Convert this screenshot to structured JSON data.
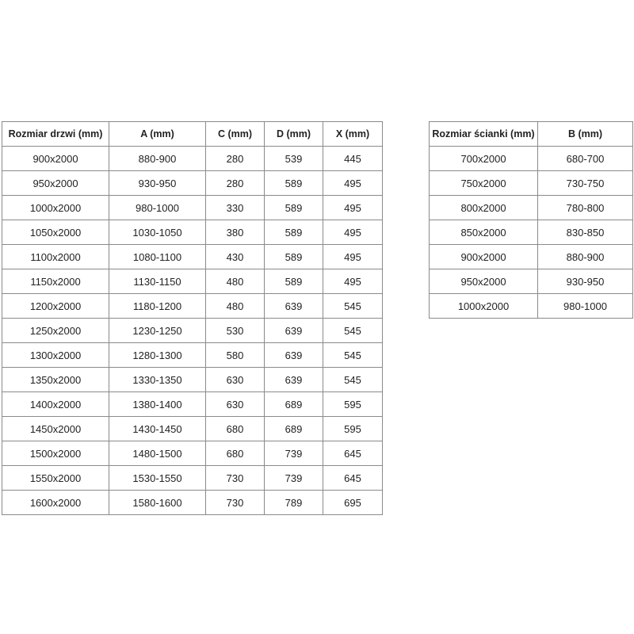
{
  "door_table": {
    "headers": [
      "Rozmiar drzwi (mm)",
      "A (mm)",
      "C (mm)",
      "D (mm)",
      "X (mm)"
    ],
    "rows": [
      [
        "900x2000",
        "880-900",
        "280",
        "539",
        "445"
      ],
      [
        "950x2000",
        "930-950",
        "280",
        "589",
        "495"
      ],
      [
        "1000x2000",
        "980-1000",
        "330",
        "589",
        "495"
      ],
      [
        "1050x2000",
        "1030-1050",
        "380",
        "589",
        "495"
      ],
      [
        "1100x2000",
        "1080-1100",
        "430",
        "589",
        "495"
      ],
      [
        "1150x2000",
        "1130-1150",
        "480",
        "589",
        "495"
      ],
      [
        "1200x2000",
        "1180-1200",
        "480",
        "639",
        "545"
      ],
      [
        "1250x2000",
        "1230-1250",
        "530",
        "639",
        "545"
      ],
      [
        "1300x2000",
        "1280-1300",
        "580",
        "639",
        "545"
      ],
      [
        "1350x2000",
        "1330-1350",
        "630",
        "639",
        "545"
      ],
      [
        "1400x2000",
        "1380-1400",
        "630",
        "689",
        "595"
      ],
      [
        "1450x2000",
        "1430-1450",
        "680",
        "689",
        "595"
      ],
      [
        "1500x2000",
        "1480-1500",
        "680",
        "739",
        "645"
      ],
      [
        "1550x2000",
        "1530-1550",
        "730",
        "739",
        "645"
      ],
      [
        "1600x2000",
        "1580-1600",
        "730",
        "789",
        "695"
      ]
    ]
  },
  "wall_table": {
    "headers": [
      "Rozmiar ścianki (mm)",
      "B (mm)"
    ],
    "rows": [
      [
        "700x2000",
        "680-700"
      ],
      [
        "750x2000",
        "730-750"
      ],
      [
        "800x2000",
        "780-800"
      ],
      [
        "850x2000",
        "830-850"
      ],
      [
        "900x2000",
        "880-900"
      ],
      [
        "950x2000",
        "930-950"
      ],
      [
        "1000x2000",
        "980-1000"
      ]
    ]
  }
}
